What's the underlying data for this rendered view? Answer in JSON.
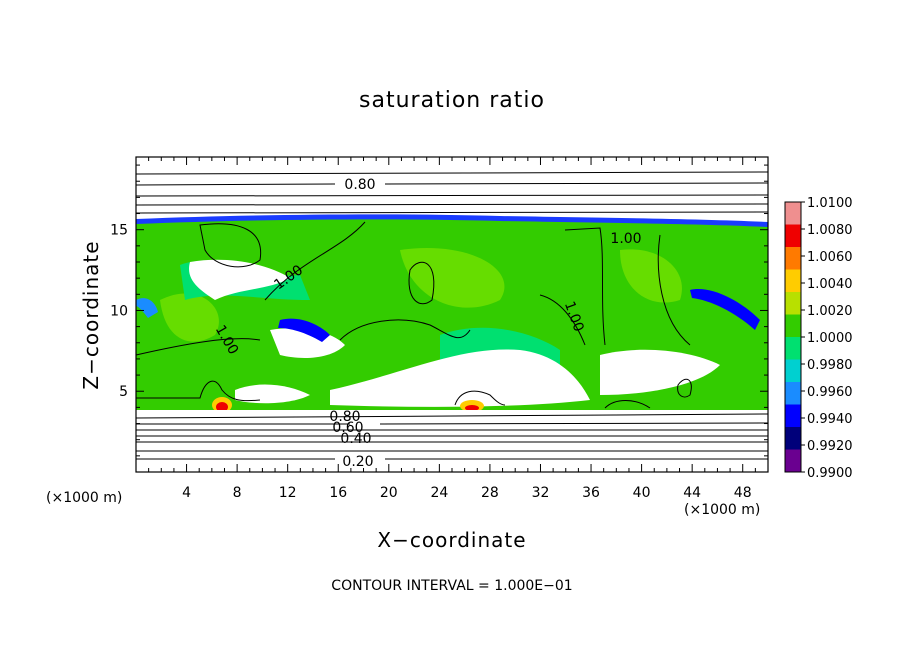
{
  "chart_data": {
    "type": "heatmap",
    "title": "saturation ratio",
    "xlabel": "X−coordinate",
    "ylabel": "Z−coordinate",
    "x_unit_left": "(×1000 m)",
    "x_unit_right": "(×1000 m)",
    "xlim": [
      0,
      50
    ],
    "ylim": [
      0,
      19.5
    ],
    "x_ticks": [
      4,
      8,
      12,
      16,
      20,
      24,
      28,
      32,
      36,
      40,
      44,
      48
    ],
    "x_tick_labels": [
      "4",
      "8",
      "12",
      "16",
      "20",
      "24",
      "28",
      "32",
      "36",
      "40",
      "44",
      "48"
    ],
    "y_ticks": [
      5,
      10,
      15
    ],
    "y_tick_labels": [
      "5",
      "10",
      "15"
    ],
    "footer": "CONTOUR INTERVAL = 1.000E−01",
    "colorbar": {
      "range": [
        0.99,
        1.01
      ],
      "labels": [
        "1.0100",
        "1.0080",
        "1.0060",
        "1.0040",
        "1.0020",
        "1.0000",
        "0.9980",
        "0.9960",
        "0.9940",
        "0.9920",
        "0.9900"
      ],
      "colors": [
        "#ef8f8f",
        "#ef0000",
        "#ff7a00",
        "#ffcc00",
        "#b8e000",
        "#33cc00",
        "#00e070",
        "#00d0d0",
        "#1a8cff",
        "#0000ff",
        "#00007a",
        "#6a0090"
      ]
    },
    "contour_labels": [
      "0.80",
      "1.00",
      "1.00",
      "1.00",
      "1.00",
      "0.80",
      "0.60",
      "0.40",
      "0.20"
    ],
    "contour_levels_background": [
      0.2,
      0.3,
      0.4,
      0.5,
      0.6,
      0.7,
      0.8,
      0.9
    ]
  }
}
